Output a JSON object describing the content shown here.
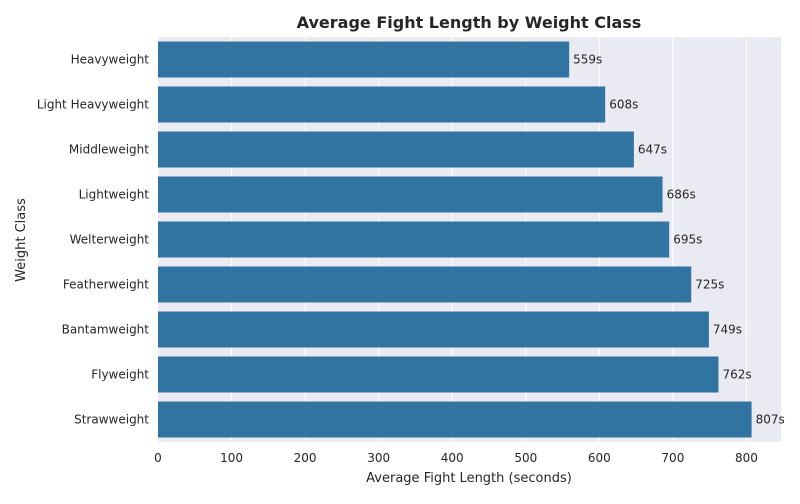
{
  "chart_data": {
    "type": "bar",
    "orientation": "horizontal",
    "title": "Average Fight Length by Weight Class",
    "xlabel": "Average Fight Length (seconds)",
    "ylabel": "Weight Class",
    "categories": [
      "Heavyweight",
      "Light Heavyweight",
      "Middleweight",
      "Lightweight",
      "Welterweight",
      "Featherweight",
      "Bantamweight",
      "Flyweight",
      "Strawweight"
    ],
    "values": [
      559,
      608,
      647,
      686,
      695,
      725,
      749,
      762,
      807
    ],
    "data_labels": [
      "559s",
      "608s",
      "647s",
      "686s",
      "695s",
      "725s",
      "749s",
      "762s",
      "807s"
    ],
    "x_ticks": [
      0,
      100,
      200,
      300,
      400,
      500,
      600,
      700,
      800
    ],
    "xlim": [
      0,
      847
    ],
    "grid": true,
    "colors": {
      "bar": "#3274a1",
      "plot_background": "#eaeaf2",
      "grid": "#ffffff"
    }
  }
}
